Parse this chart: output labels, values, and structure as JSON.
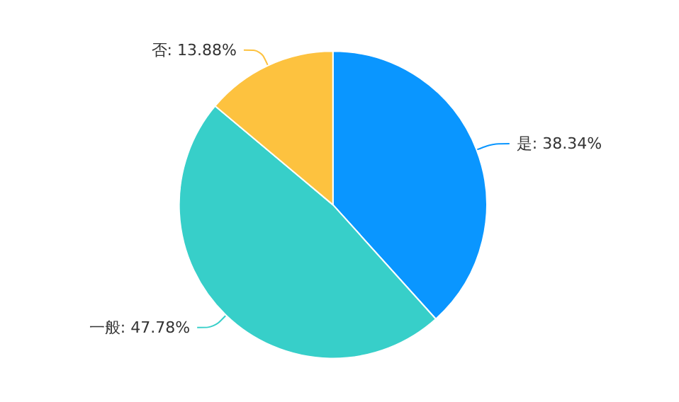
{
  "chart_data": {
    "type": "pie",
    "categories": [
      "是",
      "一般",
      "否"
    ],
    "values": [
      38.34,
      47.78,
      13.88
    ],
    "colors": [
      "#0a96ff",
      "#37cfc9",
      "#fdc23f"
    ],
    "value_labels": [
      "38.34%",
      "47.78%",
      "13.88%"
    ],
    "legend": false
  }
}
